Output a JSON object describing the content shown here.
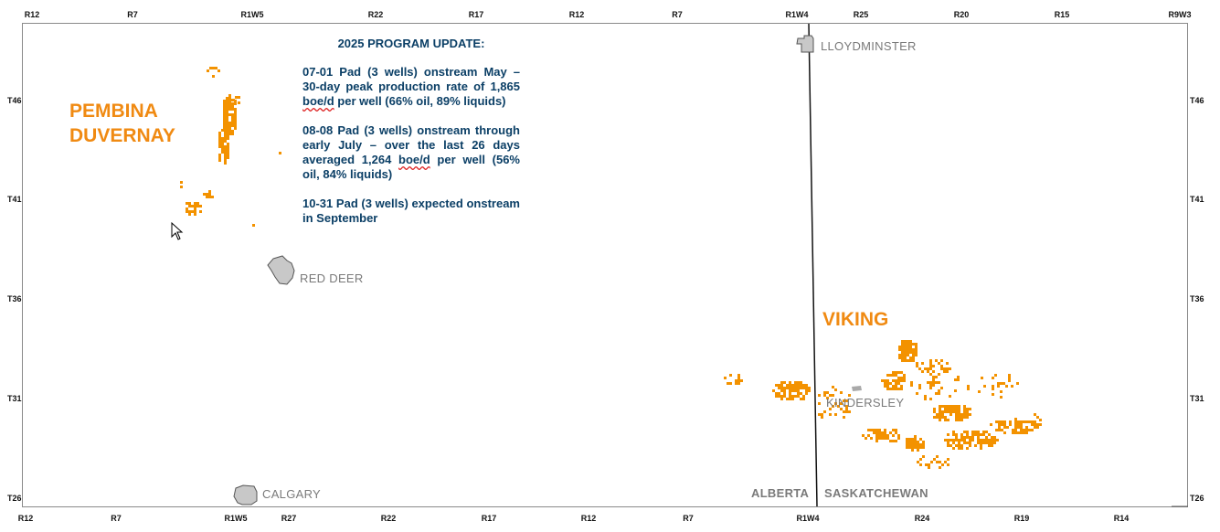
{
  "axes": {
    "top_ticks": [
      "R12",
      "R7",
      "R1W5",
      "R22",
      "R17",
      "R12",
      "R7",
      "R1W4",
      "R25",
      "R20",
      "R15",
      "R9W3"
    ],
    "bottom_ticks": [
      "R12",
      "R7",
      "R1W5",
      "R27",
      "R22",
      "R17",
      "R12",
      "R7",
      "R1W4",
      "R24",
      "R19",
      "R14"
    ],
    "left_ticks": [
      "T46",
      "T41",
      "T36",
      "T31",
      "T26"
    ],
    "right_ticks": [
      "T46",
      "T41",
      "T36",
      "T31",
      "T26"
    ]
  },
  "plays": {
    "pembina_line1": "PEMBINA",
    "pembina_line2": "DUVERNAY",
    "viking": "VIKING"
  },
  "cities": {
    "lloydminster": "LLOYDMINSTER",
    "red_deer": "RED DEER",
    "kindersley": "KINDERSLEY",
    "calgary": "CALGARY"
  },
  "provinces": {
    "alberta": "ALBERTA",
    "saskatchewan": "SASKATCHEWAN"
  },
  "update": {
    "title": "2025 PROGRAM UPDATE:",
    "p1_a": "07-01 Pad (3 wells) onstream May – 30-day peak production rate of 1,865 ",
    "p1_b": "boe/d",
    "p1_c": " per well (66% oil, 89% liquids)",
    "p2_a": "08-08 Pad (3 wells) onstream through early July – over the last 26 days averaged 1,264 ",
    "p2_b": "boe/d",
    "p2_c": " per well (56% oil, 84% liquids)",
    "p3": "10-31 Pad (3 wells) expected onstream in September"
  },
  "colors": {
    "land_orange": "#f39200",
    "update_text": "#0b3f66",
    "city_fill": "#c8c8c8",
    "label_gray": "#7a7a7a",
    "play_label_orange": "#f08a12"
  }
}
